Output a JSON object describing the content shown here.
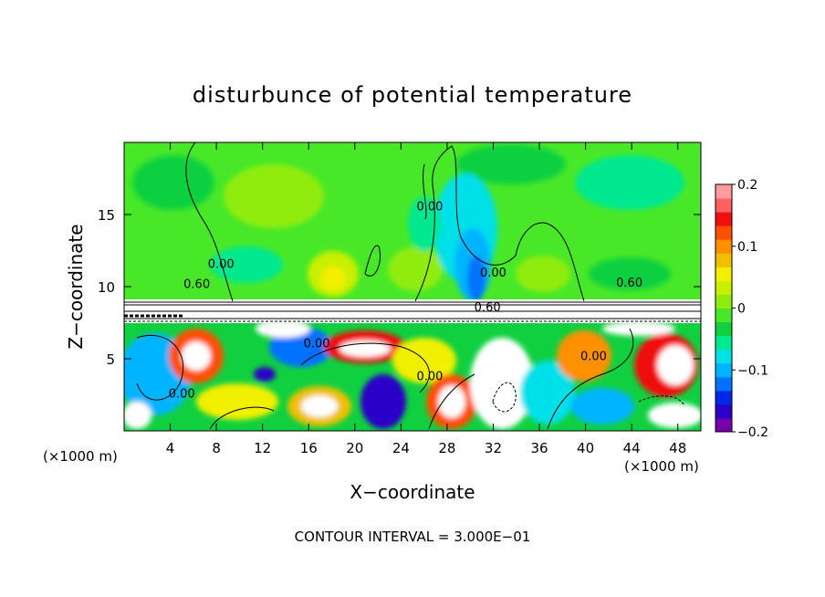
{
  "chart_data": {
    "type": "heatmap",
    "title": "disturbunce of potential temperature",
    "xlabel": "X−coordinate",
    "ylabel": "Z−coordinate",
    "xlim": [
      0,
      50
    ],
    "ylim": [
      0,
      20
    ],
    "x_ticks": [
      "4",
      "8",
      "12",
      "16",
      "20",
      "24",
      "28",
      "32",
      "36",
      "40",
      "44",
      "48"
    ],
    "x_tick_values": [
      4,
      8,
      12,
      16,
      20,
      24,
      28,
      32,
      36,
      40,
      44,
      48
    ],
    "y_ticks": [
      "5",
      "10",
      "15"
    ],
    "y_tick_values": [
      5,
      10,
      15
    ],
    "x_unit_left": "(×1000 m)",
    "x_unit_right": "(×1000 m)",
    "footer": "CONTOUR INTERVAL = 3.000E−01",
    "colorbar": {
      "range": [
        -0.2,
        0.2
      ],
      "labels": [
        "0.2",
        "0.1",
        "0",
        "−0.1",
        "−0.2"
      ],
      "label_values": [
        0.2,
        0.1,
        0,
        -0.1,
        -0.2
      ],
      "colors": [
        "#7a00a8",
        "#2b00c8",
        "#0028e8",
        "#0072ff",
        "#00b4ff",
        "#00e0e8",
        "#00e890",
        "#10d040",
        "#48e828",
        "#90ec10",
        "#c8f000",
        "#f0f000",
        "#f0c000",
        "#ff9000",
        "#ff5000",
        "#f01010",
        "#ff6060",
        "#ff9aa0"
      ]
    },
    "contour_labels": [
      {
        "text": "0.60",
        "x": 6.3,
        "z": 9.9
      },
      {
        "text": "0.60",
        "x": 43.8,
        "z": 10.0
      },
      {
        "text": "0.60",
        "x": 31.5,
        "z": 8.3
      },
      {
        "text": "0.00",
        "x": 8.4,
        "z": 11.3
      },
      {
        "text": "0.00",
        "x": 26.5,
        "z": 15.3
      },
      {
        "text": "0.00",
        "x": 32.0,
        "z": 10.7
      },
      {
        "text": "0.00",
        "x": 16.7,
        "z": 5.8
      },
      {
        "text": "0.00",
        "x": 26.5,
        "z": 3.5
      },
      {
        "text": "0.00",
        "x": 40.7,
        "z": 4.9
      },
      {
        "text": "0.00",
        "x": 5.0,
        "z": 2.3
      }
    ]
  }
}
